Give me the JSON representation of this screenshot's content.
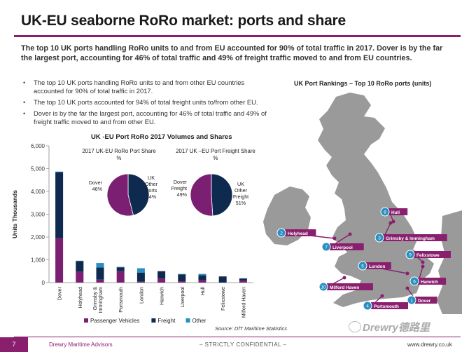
{
  "page": {
    "title": "UK-EU seaborne RoRo market: ports and share",
    "lead": "The top 10 UK ports handling RoRo units to and from EU accounted for 90% of total traffic in 2017. Dover is by the far the largest port, accounting for 46% of total traffic and 49% of freight traffic moved to and from EU countries.",
    "bullets": [
      "The top 10 UK ports handling RoRo units to and from other EU countries accounted for 90% of total traffic in 2017.",
      "The top 10 UK ports accounted for 94% of total freight units to/from other EU.",
      "Dover is by the far the largest port, accounting for 46% of total traffic and 49% of freight traffic moved to and from other EU."
    ],
    "source": "Source: DfT Maritime Statistics"
  },
  "map": {
    "title": "UK Port Rankings – Top 10 RoRo ports (units)",
    "ports": [
      {
        "rank": "1",
        "name": "Dover"
      },
      {
        "rank": "2",
        "name": "Holyhead"
      },
      {
        "rank": "3",
        "name": "Grimsby & Immingham"
      },
      {
        "rank": "4",
        "name": "Portsmouth"
      },
      {
        "rank": "5",
        "name": "London"
      },
      {
        "rank": "6",
        "name": "Harwich"
      },
      {
        "rank": "7",
        "name": "Liverpool"
      },
      {
        "rank": "8",
        "name": "Hull"
      },
      {
        "rank": "9",
        "name": "Felixstowe"
      },
      {
        "rank": "10",
        "name": "Milford Haven"
      }
    ]
  },
  "footer": {
    "page_number": "7",
    "company": "Drewry Maritime Advisors",
    "confidentiality": "– STRICTLY CONFIDENTIAL –",
    "website": "www.drewry.co.uk",
    "watermark": "Drewry德路里"
  },
  "chart_data": [
    {
      "type": "bar",
      "stacked": true,
      "title": "UK -EU Port RoRo 2017 Volumes and Shares",
      "ylabel": "Units Thousands",
      "xlabel": "",
      "ylim": [
        0,
        6000
      ],
      "yticks": [
        "0",
        "1,000",
        "2,000",
        "3,000",
        "4,000",
        "5,000",
        "6,000"
      ],
      "categories": [
        "Dover",
        "Holyhead",
        "Grimsby & Immingham",
        "Portsmouth",
        "London",
        "Harwich",
        "Liverpool",
        "Hull",
        "Felixstowe",
        "Milford Haven"
      ],
      "series": [
        {
          "name": "Passenger Vehicles",
          "color": "#7b1f73",
          "values": [
            1950,
            480,
            130,
            500,
            40,
            180,
            60,
            110,
            0,
            90
          ]
        },
        {
          "name": "Freight",
          "color": "#0f2a4f",
          "values": [
            2900,
            460,
            530,
            170,
            400,
            320,
            300,
            210,
            270,
            90
          ]
        },
        {
          "name": "Other",
          "color": "#2a8fc2",
          "values": [
            20,
            20,
            200,
            20,
            190,
            0,
            20,
            60,
            0,
            10
          ]
        }
      ],
      "legend": "bottom"
    },
    {
      "type": "pie",
      "title": "2017 UK-EU RoRo Port Share %",
      "slices": [
        {
          "label": "Dover",
          "value": 46,
          "color": "#0f2a4f"
        },
        {
          "label": "UK Other Ports",
          "value": 54,
          "color": "#7b1f73"
        }
      ]
    },
    {
      "type": "pie",
      "title": "2017 UK –EU Port Freight Share %",
      "slices": [
        {
          "label": "Dover Freight",
          "value": 49,
          "color": "#0f2a4f"
        },
        {
          "label": "UK Other Freight",
          "value": 51,
          "color": "#7b1f73"
        }
      ]
    }
  ],
  "colors": {
    "accent": "#8a1f6e",
    "passenger": "#7b1f73",
    "freight": "#0f2a4f",
    "other": "#2a8fc2"
  }
}
